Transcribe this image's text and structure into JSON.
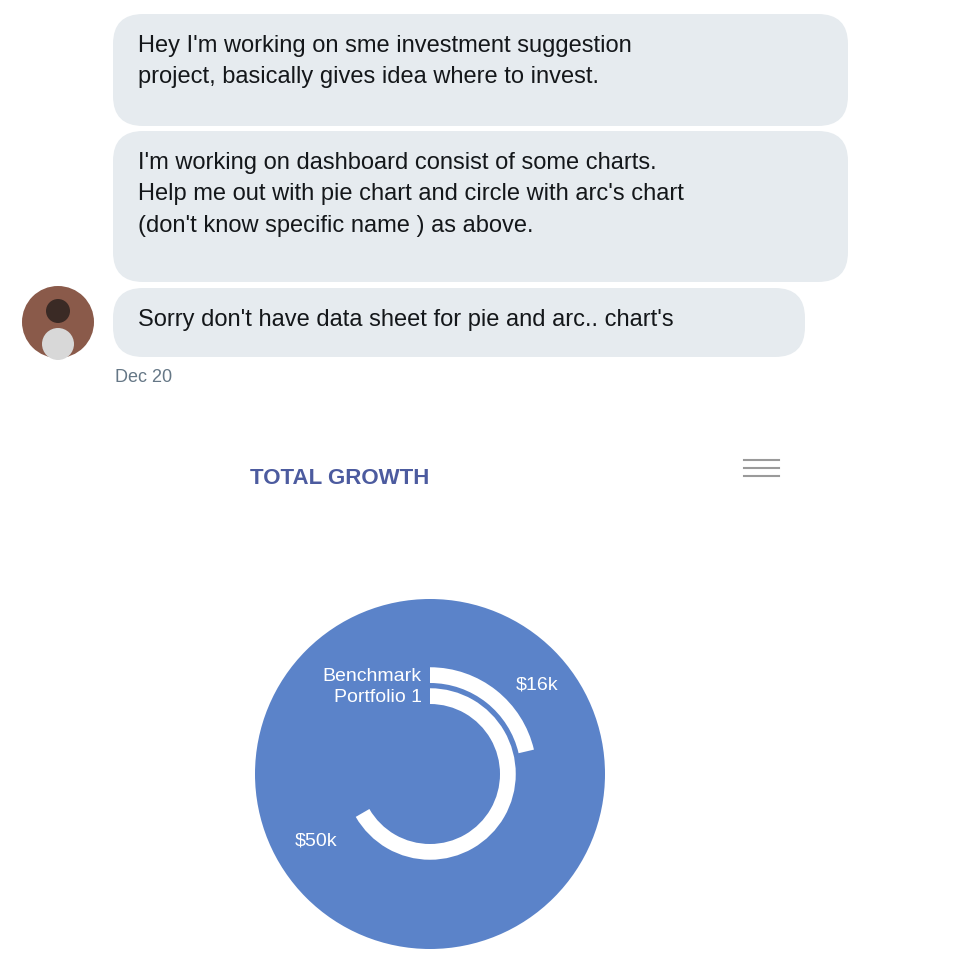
{
  "messages": [
    {
      "text": "Hey I'm working on sme investment suggestion\nproject, basically gives idea where to invest."
    },
    {
      "text": "I'm working on dashboard consist of some charts.\nHelp me out with pie chart and circle with arc's chart\n(don't know specific name ) as above."
    },
    {
      "text": "Sorry don't have data sheet for pie and arc.. chart's"
    }
  ],
  "date": "Dec 20",
  "chart_data": {
    "type": "radial_bar",
    "title": "TOTAL GROWTH",
    "categories": [
      "Benchmark",
      "Portfolio 1"
    ],
    "values": [
      16000,
      50000
    ],
    "value_labels": [
      "$16k",
      "$50k"
    ],
    "color": "#ffffff",
    "ylim": [
      0,
      75000
    ],
    "tick_labels": false,
    "data_labels": true
  }
}
